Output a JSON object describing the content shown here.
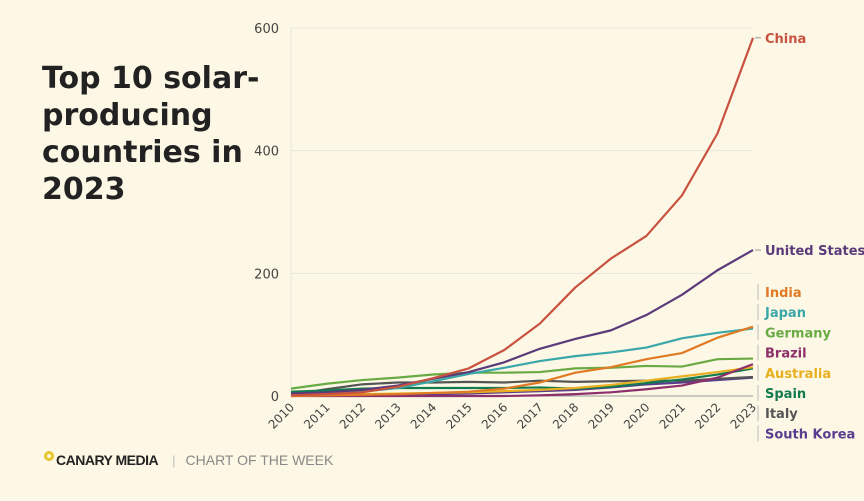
{
  "chart_data": {
    "type": "line",
    "title": "Top 10 solar-producing countries in 2023",
    "x": [
      2010,
      2011,
      2012,
      2013,
      2014,
      2015,
      2016,
      2017,
      2018,
      2019,
      2020,
      2021,
      2022,
      2023
    ],
    "ylim": [
      0,
      600
    ],
    "yticks": [
      0,
      200,
      400,
      600
    ],
    "xlabel": "",
    "ylabel": "",
    "grid": true,
    "series": [
      {
        "name": "China",
        "color": "#c8523f",
        "values": [
          1,
          3,
          6,
          15,
          29,
          45,
          75,
          118,
          177,
          224,
          261,
          327,
          428,
          584
        ]
      },
      {
        "name": "United States",
        "color": "#5b3a7a",
        "values": [
          4,
          6,
          10,
          17,
          28,
          39,
          55,
          77,
          93,
          107,
          132,
          165,
          205,
          238
        ]
      },
      {
        "name": "India",
        "color": "#e07b24",
        "values": [
          0,
          1,
          2,
          3,
          5,
          7,
          12,
          22,
          38,
          47,
          60,
          70,
          95,
          113
        ]
      },
      {
        "name": "Japan",
        "color": "#3aa7a8",
        "values": [
          3,
          5,
          7,
          13,
          24,
          36,
          46,
          57,
          65,
          71,
          79,
          94,
          103,
          110
        ]
      },
      {
        "name": "Germany",
        "color": "#6aaa45",
        "values": [
          12,
          20,
          26,
          30,
          35,
          38,
          38,
          39,
          45,
          46,
          49,
          48,
          60,
          61
        ]
      },
      {
        "name": "Brazil",
        "color": "#8c2f6b",
        "values": [
          0,
          0,
          0,
          0,
          0,
          0,
          0,
          1,
          3,
          6,
          11,
          17,
          30,
          52
        ]
      },
      {
        "name": "Australia",
        "color": "#e8b020",
        "values": [
          1,
          2,
          3,
          4,
          5,
          6,
          8,
          10,
          13,
          18,
          25,
          32,
          39,
          47
        ]
      },
      {
        "name": "Spain",
        "color": "#127a4f",
        "values": [
          7,
          9,
          12,
          13,
          13,
          13,
          13,
          14,
          12,
          15,
          21,
          27,
          35,
          45
        ]
      },
      {
        "name": "Italy",
        "color": "#555555",
        "values": [
          2,
          11,
          19,
          22,
          22,
          23,
          22,
          25,
          23,
          24,
          25,
          25,
          28,
          31
        ]
      },
      {
        "name": "South Korea",
        "color": "#5a3d8f",
        "values": [
          1,
          1,
          1,
          2,
          3,
          4,
          6,
          8,
          10,
          14,
          19,
          22,
          26,
          30
        ]
      }
    ]
  },
  "footer": {
    "brand": "CANARY MEDIA",
    "tag": "CHART OF THE WEEK"
  }
}
